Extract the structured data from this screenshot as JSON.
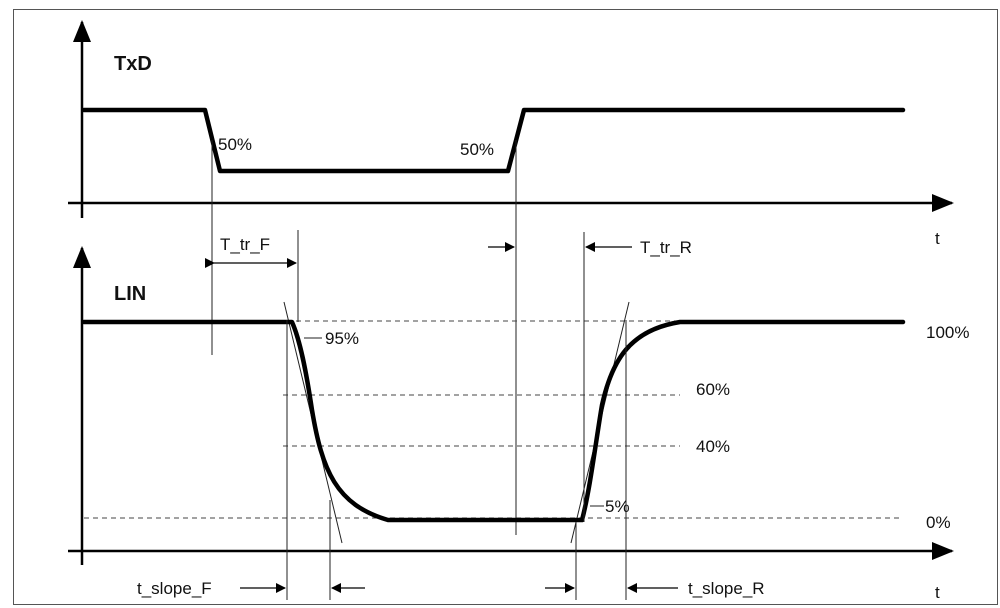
{
  "diagram": {
    "txd_label": "TxD",
    "lin_label": "LIN",
    "time_label_top": "t",
    "time_label_bottom": "t",
    "txd_fall_pct": "50%",
    "txd_rise_pct": "50%",
    "level_100": "100%",
    "level_95": "95%",
    "level_60": "60%",
    "level_40": "40%",
    "level_5": "5%",
    "level_0": "0%",
    "t_tr_f": "T_tr_F",
    "t_tr_r": "T_tr_R",
    "t_slope_f": "t_slope_F",
    "t_slope_r": "t_slope_R"
  },
  "colors": {
    "ink": "#000000",
    "background": "#ffffff",
    "border": "#555555"
  }
}
